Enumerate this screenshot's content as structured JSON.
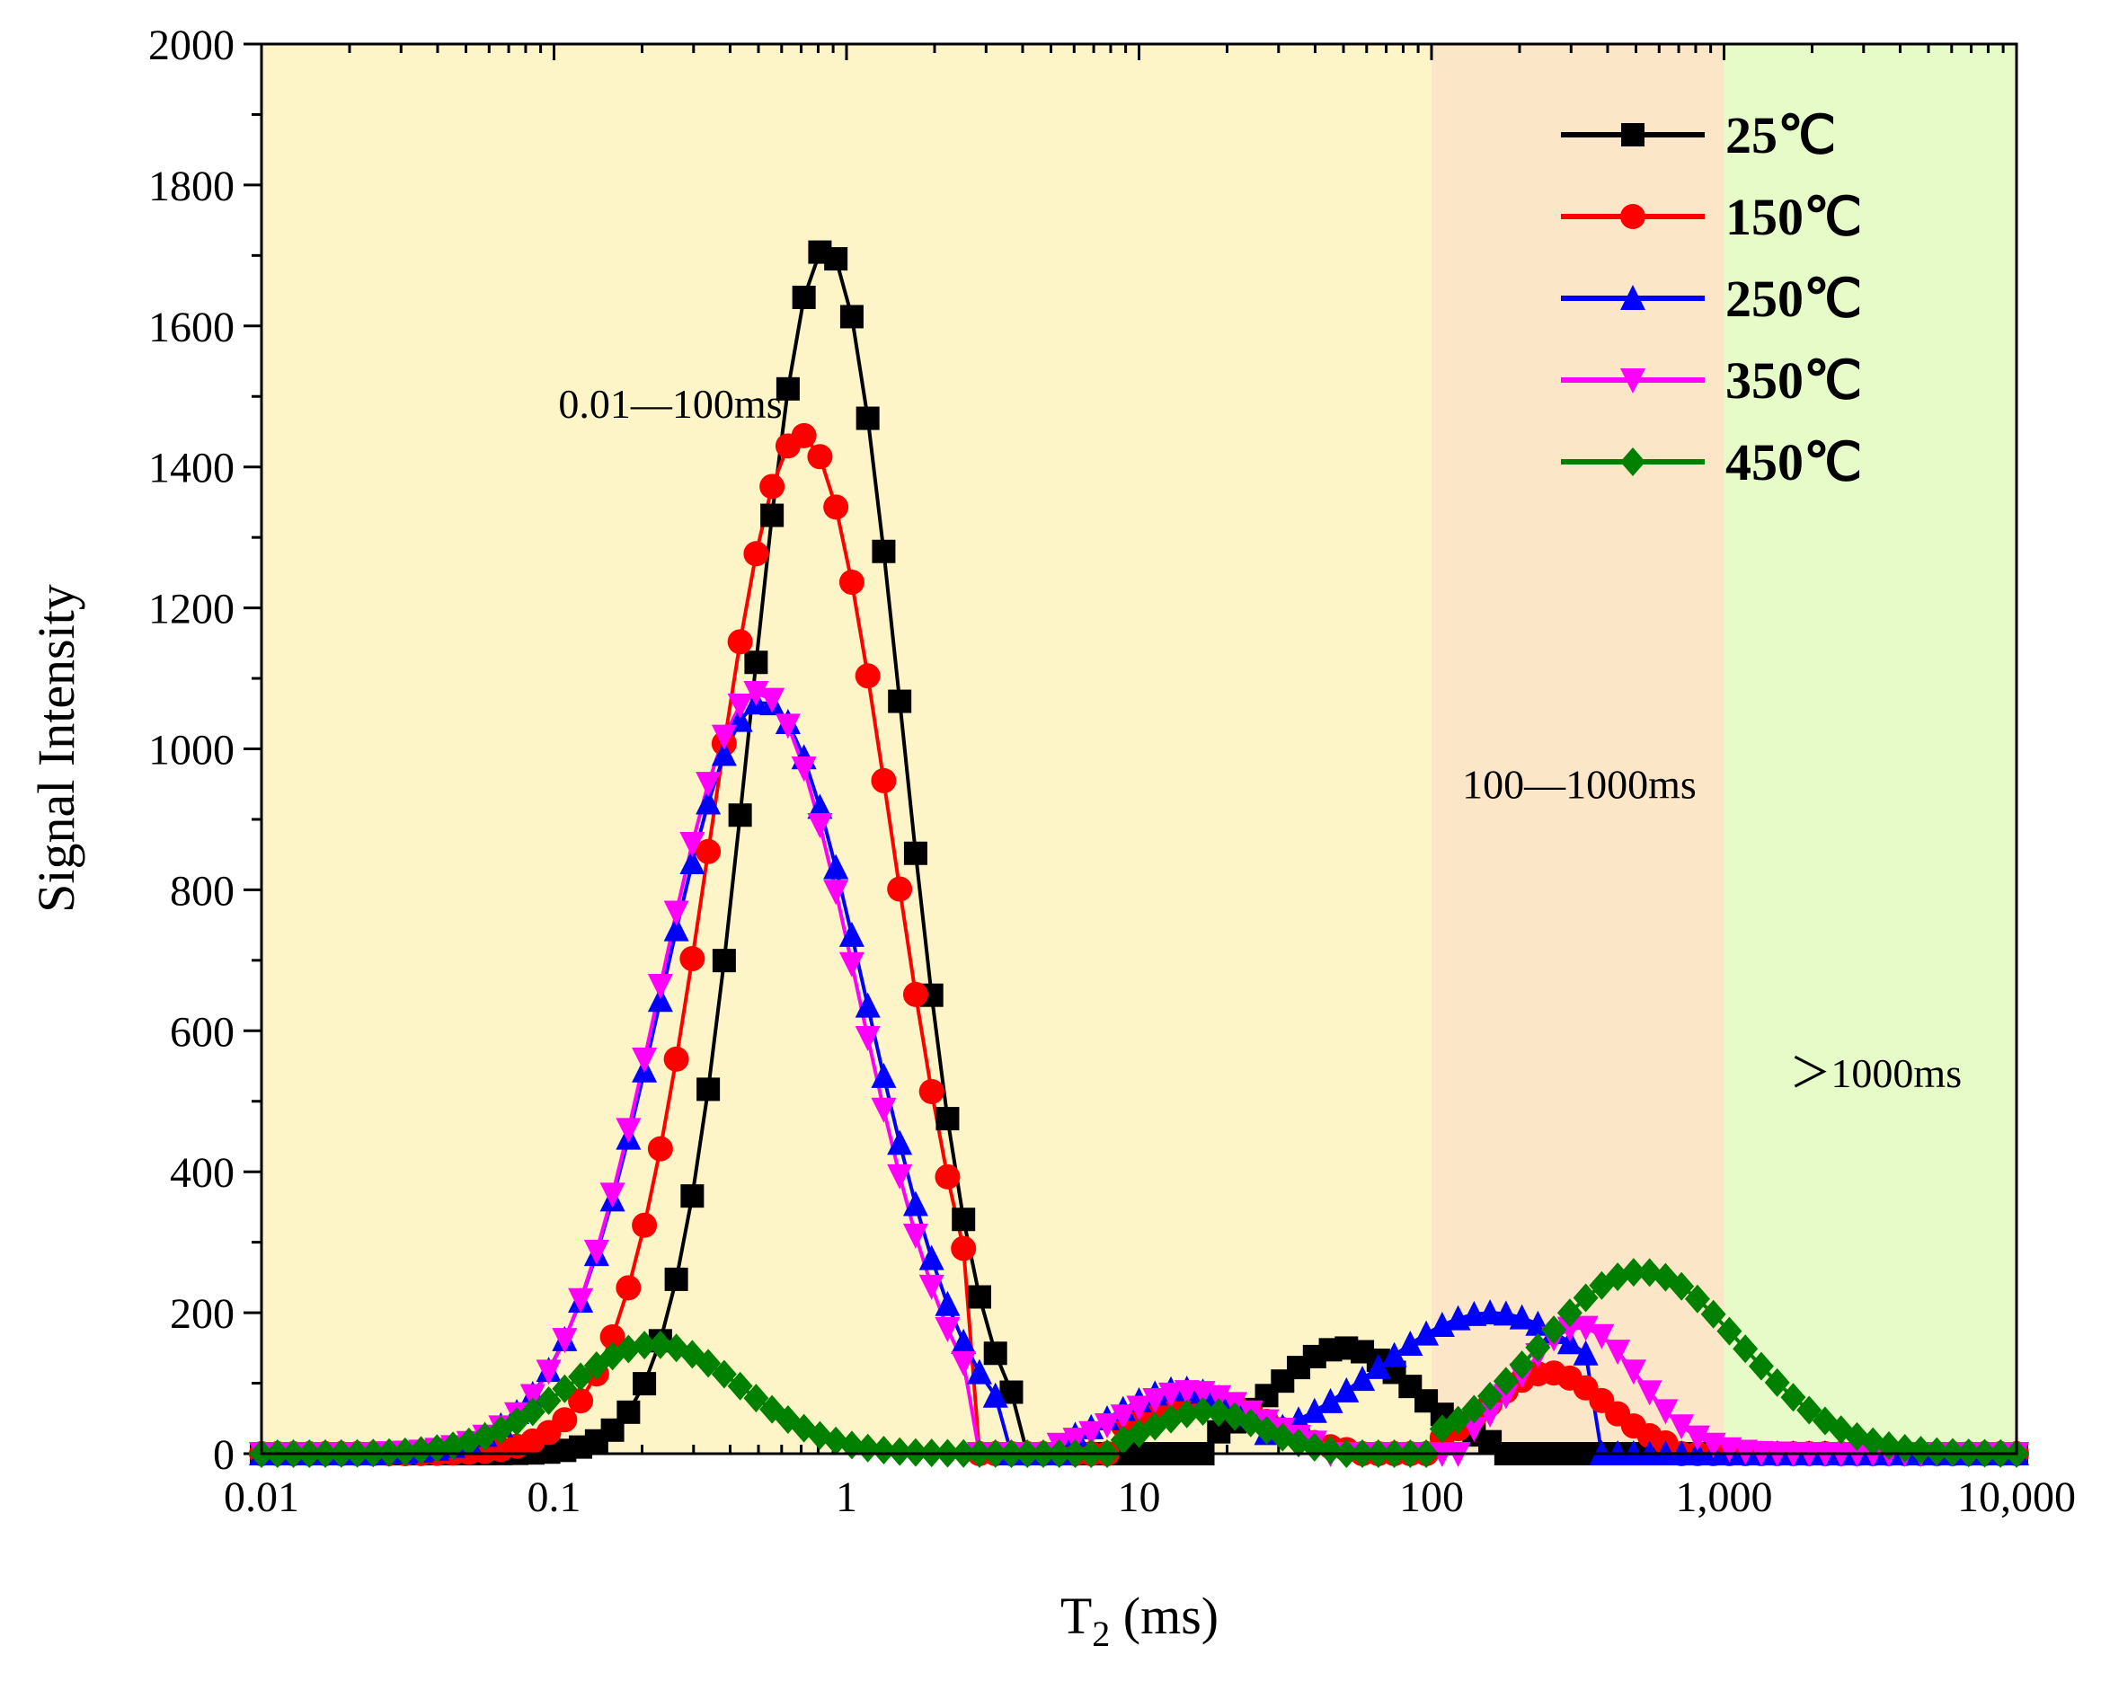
{
  "chart_data": {
    "type": "line",
    "xscale": "log",
    "xlim": [
      0.01,
      10000
    ],
    "ylim": [
      0,
      2000
    ],
    "xlabel_main": "T",
    "xlabel_sub": "2",
    "xlabel_unit": " (ms)",
    "ylabel": "Signal Intensity",
    "xticks": [
      {
        "value": 0.01,
        "label": "0.01"
      },
      {
        "value": 0.1,
        "label": "0.1"
      },
      {
        "value": 1,
        "label": "1"
      },
      {
        "value": 10,
        "label": "10"
      },
      {
        "value": 100,
        "label": "100"
      },
      {
        "value": 1000,
        "label": "1,000"
      },
      {
        "value": 10000,
        "label": "10,000"
      }
    ],
    "yticks": [
      {
        "value": 0,
        "label": "0"
      },
      {
        "value": 200,
        "label": "200"
      },
      {
        "value": 400,
        "label": "400"
      },
      {
        "value": 600,
        "label": "600"
      },
      {
        "value": 800,
        "label": "800"
      },
      {
        "value": 1000,
        "label": "1000"
      },
      {
        "value": 1200,
        "label": "1200"
      },
      {
        "value": 1400,
        "label": "1400"
      },
      {
        "value": 1600,
        "label": "1600"
      },
      {
        "value": 1800,
        "label": "1800"
      },
      {
        "value": 2000,
        "label": "2000"
      }
    ],
    "regions": [
      {
        "from": 0.01,
        "to": 100,
        "color": "#fdf5c8",
        "label": "0.01—100ms",
        "label_x": 0.25,
        "label_y": 1470
      },
      {
        "from": 100,
        "to": 1000,
        "color": "#fbe6c7",
        "label": "100—1000ms",
        "label_x": 320,
        "label_y": 930
      },
      {
        "from": 1000,
        "to": 10000,
        "color": "#e6fbc8",
        "label": "＞1000ms",
        "label_x": 3300,
        "label_y": 520
      }
    ],
    "series": [
      {
        "name": "25℃",
        "color": "#000000",
        "marker": "square",
        "peaks": [
          {
            "center": 0.85,
            "amp": 1710,
            "sigma": 0.26,
            "start": 0.045,
            "end": 3.8
          },
          {
            "center": 50,
            "amp": 150,
            "sigma": 0.24,
            "start": 18,
            "end": 160
          }
        ]
      },
      {
        "name": "150℃",
        "color": "#ff0000",
        "marker": "circle",
        "peaks": [
          {
            "center": 0.7,
            "amp": 1445,
            "sigma": 0.31,
            "start": 0.035,
            "end": 2.8
          },
          {
            "center": 16,
            "amp": 80,
            "sigma": 0.22,
            "start": 8,
            "end": 55
          },
          {
            "center": 250,
            "amp": 115,
            "sigma": 0.2,
            "start": 100,
            "end": 650
          }
        ]
      },
      {
        "name": "250℃",
        "color": "#0000ff",
        "marker": "triangle-up",
        "peaks": [
          {
            "center": 0.52,
            "amp": 1068,
            "sigma": 0.35,
            "start": 0.025,
            "end": 3.3
          },
          {
            "center": 14,
            "amp": 92,
            "sigma": 0.23,
            "start": 6,
            "end": 25
          },
          {
            "center": 160,
            "amp": 200,
            "sigma": 0.39,
            "start": 25,
            "end": 350
          }
        ]
      },
      {
        "name": "350℃",
        "color": "#ff00ff",
        "marker": "triangle-down",
        "peaks": [
          {
            "center": 0.5,
            "amp": 1080,
            "sigma": 0.34,
            "start": 0.025,
            "end": 2.6
          },
          {
            "center": 15,
            "amp": 88,
            "sigma": 0.23,
            "start": 5,
            "end": 45
          },
          {
            "center": 320,
            "amp": 180,
            "sigma": 0.2,
            "start": 130,
            "end": 1800
          }
        ]
      },
      {
        "name": "450℃",
        "color": "#008000",
        "marker": "diamond",
        "peaks": [
          {
            "center": 0.22,
            "amp": 155,
            "sigma": 0.3,
            "start": 0.01,
            "end": 10000
          },
          {
            "center": 17,
            "amp": 60,
            "sigma": 0.19,
            "start": 8,
            "end": 50
          },
          {
            "center": 520,
            "amp": 258,
            "sigma": 0.34,
            "start": 100,
            "end": 10000
          }
        ]
      }
    ]
  }
}
